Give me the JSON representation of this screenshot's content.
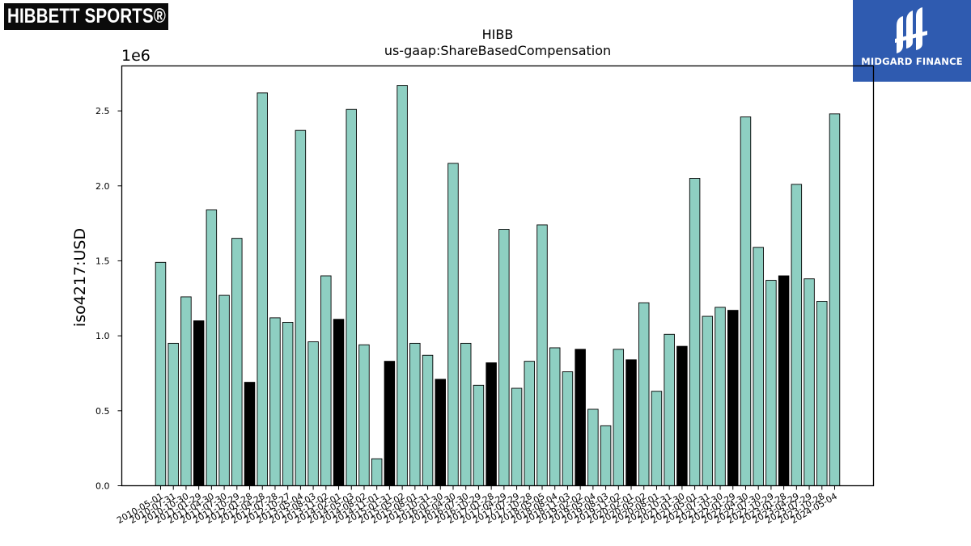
{
  "logos": {
    "hibbett": "HIBBETT SPORTS®",
    "midgard": "MIDGARD FINANCE"
  },
  "colors": {
    "bar_normal": "#8ecfc2",
    "bar_highlight": "#000000",
    "axis": "#000000",
    "midgard_bg": "#2f5bb0"
  },
  "chart_data": {
    "type": "bar",
    "title": "HIBB",
    "subtitle": "us-gaap:ShareBasedCompensation",
    "ylabel": "iso4217:USD",
    "xlabel": "",
    "y_multiplier": "1e6",
    "ylim": [
      0,
      2.8
    ],
    "yticks": [
      "0.0",
      "0.5",
      "1.0",
      "1.5",
      "2.0",
      "2.5"
    ],
    "grid": false,
    "categories": [
      "2010-05-01",
      "2010-07-31",
      "2010-10-30",
      "2011-01-29",
      "2011-04-30",
      "2011-07-30",
      "2011-10-29",
      "2012-01-28",
      "2012-04-28",
      "2012-07-28",
      "2012-10-27",
      "2013-05-04",
      "2013-08-03",
      "2013-11-02",
      "2014-02-01",
      "2014-05-03",
      "2014-08-02",
      "2014-11-01",
      "2015-01-31",
      "2015-05-02",
      "2015-08-01",
      "2015-10-31",
      "2016-01-30",
      "2016-04-30",
      "2016-07-30",
      "2016-10-29",
      "2017-01-28",
      "2017-04-29",
      "2017-07-29",
      "2017-10-28",
      "2018-05-05",
      "2018-08-04",
      "2018-11-03",
      "2019-02-02",
      "2019-05-04",
      "2019-08-03",
      "2019-11-02",
      "2020-02-01",
      "2020-05-02",
      "2020-08-01",
      "2020-10-31",
      "2021-01-30",
      "2021-05-01",
      "2021-07-31",
      "2021-10-30",
      "2022-01-29",
      "2022-04-30",
      "2022-07-30",
      "2022-10-29",
      "2023-01-28",
      "2023-04-29",
      "2023-07-29",
      "2023-10-28",
      "2024-05-04"
    ],
    "values": [
      1.49,
      0.95,
      1.26,
      1.1,
      1.84,
      1.27,
      1.65,
      0.69,
      2.62,
      1.12,
      1.09,
      2.37,
      0.96,
      1.4,
      1.11,
      2.51,
      0.94,
      0.18,
      0.83,
      2.67,
      0.95,
      0.87,
      0.71,
      2.15,
      0.95,
      0.67,
      0.82,
      1.71,
      0.65,
      0.83,
      1.74,
      0.92,
      0.76,
      0.91,
      0.51,
      0.4,
      0.91,
      0.84,
      1.22,
      0.63,
      1.01,
      0.93,
      2.05,
      1.13,
      1.19,
      1.17,
      2.46,
      1.59,
      1.37,
      1.4,
      2.01,
      1.38,
      1.23,
      2.48
    ],
    "highlight": [
      false,
      false,
      false,
      true,
      false,
      false,
      false,
      true,
      false,
      false,
      false,
      false,
      false,
      false,
      true,
      false,
      false,
      false,
      true,
      false,
      false,
      false,
      true,
      false,
      false,
      false,
      true,
      false,
      false,
      false,
      false,
      false,
      false,
      true,
      false,
      false,
      false,
      true,
      false,
      false,
      false,
      true,
      false,
      false,
      false,
      true,
      false,
      false,
      false,
      true,
      false,
      false,
      false,
      false
    ]
  }
}
